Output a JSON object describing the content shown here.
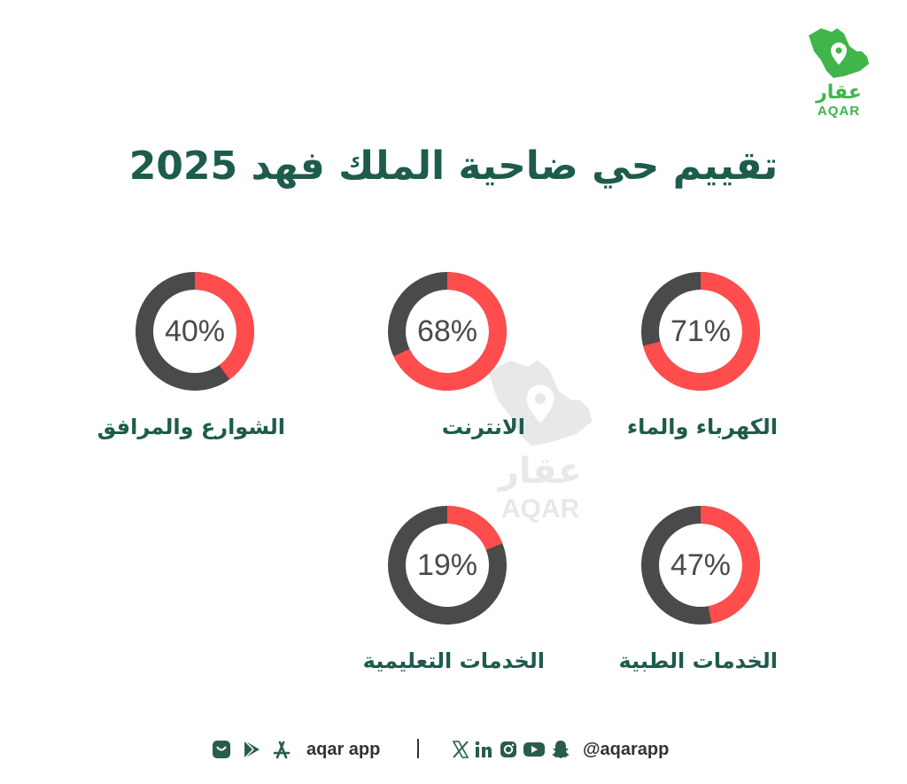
{
  "brand": {
    "name_ar": "عقار",
    "name_en": "AQAR"
  },
  "title": "تقييم حي ضاحية الملك فهد 2025",
  "colors": {
    "accent": "#ff4d4d",
    "track": "#4a4a4a",
    "heading": "#1d5c4c",
    "brand": "#3fb54a"
  },
  "metrics": [
    {
      "label": "الكهرباء والماء",
      "value": 71,
      "display": "71%"
    },
    {
      "label": "الانترنت",
      "value": 68,
      "display": "68%"
    },
    {
      "label": "الشوارع والمرافق",
      "value": 40,
      "display": "40%"
    },
    {
      "label": "الخدمات الطبية",
      "value": 47,
      "display": "47%"
    },
    {
      "label": "الخدمات التعليمية",
      "value": 19,
      "display": "19%"
    }
  ],
  "footer": {
    "app_text": "aqar app",
    "social_handle": "@aqarapp",
    "app_icons": [
      "app-gallery-icon",
      "google-play-icon",
      "app-store-icon"
    ],
    "social_icons": [
      "x-icon",
      "linkedin-icon",
      "instagram-icon",
      "youtube-icon",
      "snapchat-icon"
    ]
  }
}
